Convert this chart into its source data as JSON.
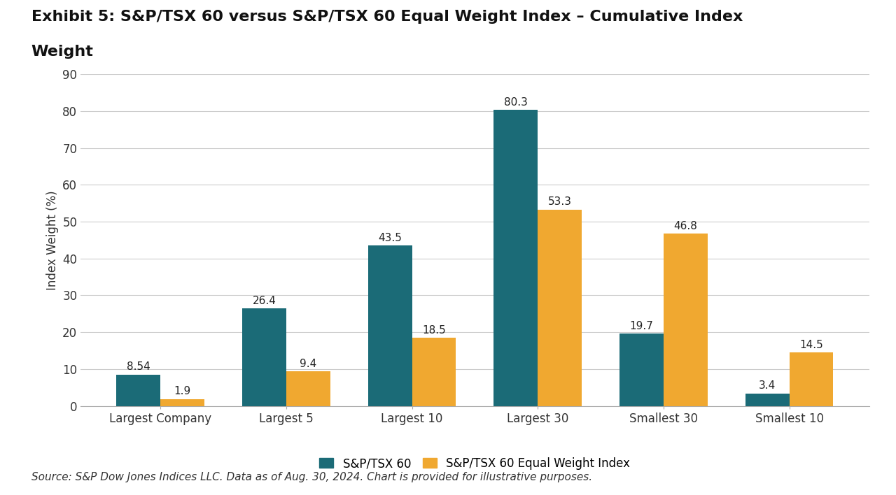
{
  "title_line1": "Exhibit 5: S&P/TSX 60 versus S&P/TSX 60 Equal Weight Index – Cumulative Index",
  "title_line2": "Weight",
  "categories": [
    "Largest Company",
    "Largest 5",
    "Largest 10",
    "Largest 30",
    "Smallest 30",
    "Smallest 10"
  ],
  "series1_label": "S&P/TSX 60",
  "series2_label": "S&P/TSX 60 Equal Weight Index",
  "series1_values": [
    8.54,
    26.4,
    43.5,
    80.3,
    19.7,
    3.4
  ],
  "series2_values": [
    1.9,
    9.4,
    18.5,
    53.3,
    46.8,
    14.5
  ],
  "series1_color": "#1b6b77",
  "series2_color": "#f0a830",
  "ylabel": "Index Weight (%)",
  "ylim": [
    0,
    90
  ],
  "yticks": [
    0,
    10,
    20,
    30,
    40,
    50,
    60,
    70,
    80,
    90
  ],
  "source_text": "Source: S&P Dow Jones Indices LLC. Data as of Aug. 30, 2024. Chart is provided for illustrative purposes.",
  "title_fontsize": 16,
  "axis_fontsize": 12,
  "tick_fontsize": 12,
  "bar_label_fontsize": 11,
  "legend_fontsize": 12,
  "source_fontsize": 11,
  "background_color": "#ffffff",
  "grid_color": "#cccccc"
}
